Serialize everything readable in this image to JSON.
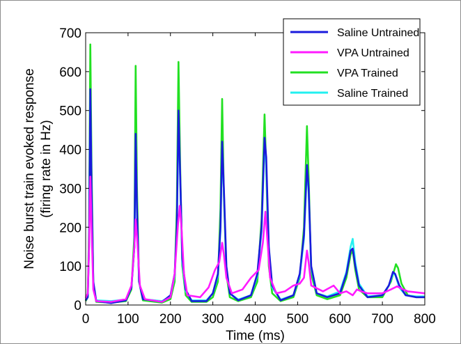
{
  "chart_data": {
    "type": "line",
    "xlabel": "Time (ms)",
    "ylabel_line1": "Noise burst train evoked response",
    "ylabel_line2": "(firing rate in Hz)",
    "xlim": [
      0,
      800
    ],
    "ylim": [
      0,
      700
    ],
    "xticks": [
      0,
      100,
      200,
      300,
      400,
      500,
      600,
      700,
      800
    ],
    "yticks": [
      0,
      100,
      200,
      300,
      400,
      500,
      600,
      700
    ],
    "grid": false,
    "legend_position": "top-right",
    "series": [
      {
        "name": "Saline Untrained",
        "color": "#1a1adc",
        "points": [
          [
            0,
            12
          ],
          [
            5,
            20
          ],
          [
            8,
            150
          ],
          [
            11,
            555
          ],
          [
            14,
            300
          ],
          [
            18,
            60
          ],
          [
            25,
            10
          ],
          [
            60,
            5
          ],
          [
            95,
            12
          ],
          [
            108,
            45
          ],
          [
            115,
            150
          ],
          [
            118,
            440
          ],
          [
            121,
            250
          ],
          [
            126,
            60
          ],
          [
            135,
            15
          ],
          [
            180,
            8
          ],
          [
            200,
            25
          ],
          [
            210,
            80
          ],
          [
            215,
            200
          ],
          [
            219,
            500
          ],
          [
            223,
            330
          ],
          [
            228,
            120
          ],
          [
            236,
            40
          ],
          [
            250,
            10
          ],
          [
            285,
            10
          ],
          [
            300,
            30
          ],
          [
            312,
            80
          ],
          [
            318,
            200
          ],
          [
            322,
            420
          ],
          [
            326,
            300
          ],
          [
            332,
            100
          ],
          [
            340,
            30
          ],
          [
            360,
            12
          ],
          [
            390,
            25
          ],
          [
            405,
            80
          ],
          [
            415,
            200
          ],
          [
            422,
            430
          ],
          [
            426,
            380
          ],
          [
            432,
            150
          ],
          [
            440,
            50
          ],
          [
            460,
            12
          ],
          [
            490,
            25
          ],
          [
            505,
            80
          ],
          [
            515,
            180
          ],
          [
            522,
            360
          ],
          [
            526,
            300
          ],
          [
            532,
            100
          ],
          [
            545,
            30
          ],
          [
            570,
            20
          ],
          [
            600,
            30
          ],
          [
            615,
            80
          ],
          [
            625,
            140
          ],
          [
            630,
            145
          ],
          [
            636,
            100
          ],
          [
            645,
            50
          ],
          [
            665,
            20
          ],
          [
            700,
            25
          ],
          [
            715,
            50
          ],
          [
            725,
            85
          ],
          [
            730,
            80
          ],
          [
            740,
            50
          ],
          [
            755,
            25
          ],
          [
            780,
            20
          ],
          [
            800,
            20
          ]
        ]
      },
      {
        "name": "VPA Untrained",
        "color": "#ff1aff",
        "points": [
          [
            0,
            18
          ],
          [
            5,
            30
          ],
          [
            8,
            150
          ],
          [
            11,
            330
          ],
          [
            14,
            200
          ],
          [
            18,
            40
          ],
          [
            25,
            10
          ],
          [
            60,
            8
          ],
          [
            95,
            15
          ],
          [
            108,
            50
          ],
          [
            115,
            150
          ],
          [
            118,
            220
          ],
          [
            122,
            160
          ],
          [
            128,
            50
          ],
          [
            140,
            15
          ],
          [
            180,
            8
          ],
          [
            200,
            20
          ],
          [
            210,
            80
          ],
          [
            218,
            210
          ],
          [
            222,
            255
          ],
          [
            226,
            200
          ],
          [
            232,
            80
          ],
          [
            240,
            25
          ],
          [
            270,
            20
          ],
          [
            290,
            45
          ],
          [
            305,
            90
          ],
          [
            315,
            110
          ],
          [
            322,
            160
          ],
          [
            326,
            130
          ],
          [
            332,
            70
          ],
          [
            345,
            30
          ],
          [
            370,
            40
          ],
          [
            390,
            70
          ],
          [
            408,
            90
          ],
          [
            418,
            160
          ],
          [
            424,
            240
          ],
          [
            428,
            180
          ],
          [
            435,
            70
          ],
          [
            450,
            30
          ],
          [
            470,
            35
          ],
          [
            490,
            50
          ],
          [
            505,
            55
          ],
          [
            515,
            70
          ],
          [
            522,
            140
          ],
          [
            526,
            110
          ],
          [
            532,
            50
          ],
          [
            560,
            35
          ],
          [
            585,
            50
          ],
          [
            600,
            30
          ],
          [
            615,
            35
          ],
          [
            630,
            25
          ],
          [
            640,
            40
          ],
          [
            650,
            35
          ],
          [
            665,
            30
          ],
          [
            700,
            30
          ],
          [
            720,
            40
          ],
          [
            735,
            48
          ],
          [
            745,
            42
          ],
          [
            760,
            35
          ],
          [
            800,
            30
          ]
        ]
      },
      {
        "name": "VPA Trained",
        "color": "#22e022",
        "points": [
          [
            0,
            10
          ],
          [
            5,
            20
          ],
          [
            8,
            200
          ],
          [
            11,
            670
          ],
          [
            14,
            350
          ],
          [
            18,
            50
          ],
          [
            25,
            8
          ],
          [
            60,
            6
          ],
          [
            95,
            10
          ],
          [
            108,
            40
          ],
          [
            115,
            180
          ],
          [
            118,
            615
          ],
          [
            121,
            300
          ],
          [
            126,
            60
          ],
          [
            135,
            12
          ],
          [
            180,
            6
          ],
          [
            200,
            15
          ],
          [
            210,
            60
          ],
          [
            215,
            250
          ],
          [
            219,
            625
          ],
          [
            223,
            350
          ],
          [
            228,
            100
          ],
          [
            236,
            25
          ],
          [
            250,
            8
          ],
          [
            285,
            8
          ],
          [
            300,
            20
          ],
          [
            312,
            60
          ],
          [
            318,
            250
          ],
          [
            322,
            530
          ],
          [
            326,
            280
          ],
          [
            332,
            80
          ],
          [
            340,
            20
          ],
          [
            360,
            10
          ],
          [
            390,
            20
          ],
          [
            405,
            60
          ],
          [
            415,
            220
          ],
          [
            422,
            490
          ],
          [
            426,
            350
          ],
          [
            432,
            100
          ],
          [
            440,
            30
          ],
          [
            460,
            10
          ],
          [
            490,
            20
          ],
          [
            505,
            70
          ],
          [
            515,
            200
          ],
          [
            522,
            460
          ],
          [
            526,
            330
          ],
          [
            532,
            80
          ],
          [
            545,
            25
          ],
          [
            570,
            15
          ],
          [
            600,
            25
          ],
          [
            615,
            70
          ],
          [
            625,
            130
          ],
          [
            630,
            140
          ],
          [
            636,
            90
          ],
          [
            645,
            40
          ],
          [
            665,
            20
          ],
          [
            700,
            20
          ],
          [
            720,
            60
          ],
          [
            732,
            105
          ],
          [
            737,
            95
          ],
          [
            745,
            55
          ],
          [
            760,
            25
          ],
          [
            780,
            20
          ],
          [
            800,
            20
          ]
        ]
      },
      {
        "name": "Saline Trained",
        "color": "#22f0f0",
        "points": [
          [
            0,
            14
          ],
          [
            5,
            22
          ],
          [
            8,
            160
          ],
          [
            11,
            540
          ],
          [
            14,
            290
          ],
          [
            18,
            55
          ],
          [
            25,
            12
          ],
          [
            60,
            10
          ],
          [
            95,
            14
          ],
          [
            108,
            45
          ],
          [
            115,
            150
          ],
          [
            118,
            430
          ],
          [
            121,
            240
          ],
          [
            126,
            60
          ],
          [
            135,
            15
          ],
          [
            180,
            10
          ],
          [
            200,
            22
          ],
          [
            210,
            75
          ],
          [
            215,
            190
          ],
          [
            219,
            480
          ],
          [
            223,
            320
          ],
          [
            228,
            110
          ],
          [
            236,
            35
          ],
          [
            250,
            12
          ],
          [
            285,
            12
          ],
          [
            300,
            30
          ],
          [
            312,
            75
          ],
          [
            318,
            190
          ],
          [
            322,
            410
          ],
          [
            326,
            290
          ],
          [
            332,
            95
          ],
          [
            340,
            30
          ],
          [
            360,
            14
          ],
          [
            390,
            25
          ],
          [
            405,
            75
          ],
          [
            415,
            190
          ],
          [
            422,
            420
          ],
          [
            426,
            360
          ],
          [
            432,
            140
          ],
          [
            440,
            45
          ],
          [
            460,
            14
          ],
          [
            490,
            25
          ],
          [
            505,
            75
          ],
          [
            515,
            170
          ],
          [
            522,
            350
          ],
          [
            526,
            290
          ],
          [
            532,
            95
          ],
          [
            545,
            30
          ],
          [
            570,
            22
          ],
          [
            600,
            35
          ],
          [
            615,
            85
          ],
          [
            625,
            150
          ],
          [
            630,
            170
          ],
          [
            636,
            110
          ],
          [
            645,
            55
          ],
          [
            665,
            22
          ],
          [
            700,
            25
          ],
          [
            715,
            50
          ],
          [
            725,
            80
          ],
          [
            730,
            78
          ],
          [
            740,
            45
          ],
          [
            755,
            25
          ],
          [
            780,
            22
          ],
          [
            800,
            22
          ]
        ]
      }
    ]
  }
}
